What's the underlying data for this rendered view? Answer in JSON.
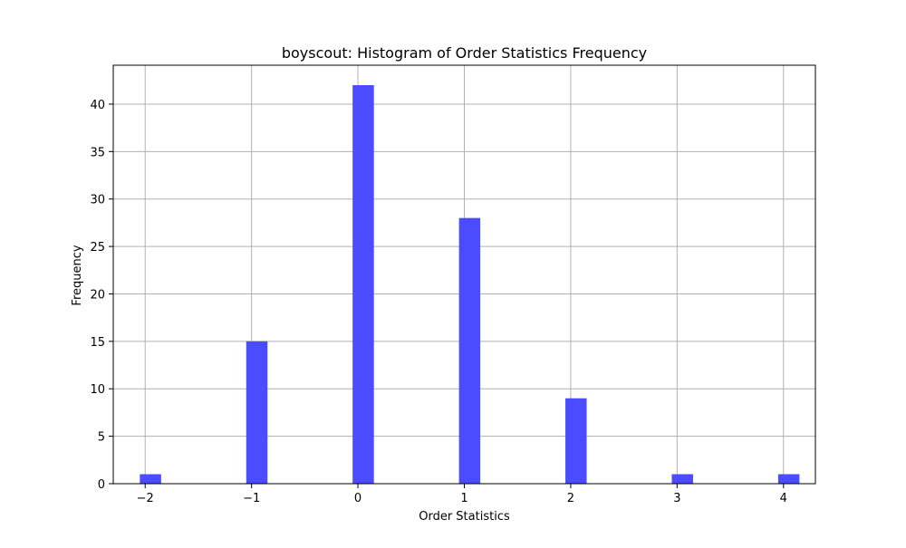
{
  "chart_data": {
    "type": "bar",
    "title": "boyscout: Histogram of Order Statistics Frequency",
    "xlabel": "Order Statistics",
    "ylabel": "Frequency",
    "bins": [
      {
        "x": -2,
        "value": 1
      },
      {
        "x": -1,
        "value": 15
      },
      {
        "x": 0,
        "value": 42
      },
      {
        "x": 1,
        "value": 28
      },
      {
        "x": 2,
        "value": 9
      },
      {
        "x": 3,
        "value": 1
      },
      {
        "x": 4,
        "value": 1
      }
    ],
    "bin_width": 0.2,
    "xlim": [
      -2.3,
      4.3
    ],
    "ylim": [
      0,
      44.1
    ],
    "xticks": [
      -2,
      -1,
      0,
      1,
      2,
      3,
      4
    ],
    "xtick_labels": [
      "−2",
      "−1",
      "0",
      "1",
      "2",
      "3",
      "4"
    ],
    "yticks": [
      0,
      5,
      10,
      15,
      20,
      25,
      30,
      35,
      40
    ],
    "ytick_labels": [
      "0",
      "5",
      "10",
      "15",
      "20",
      "25",
      "30",
      "35",
      "40"
    ],
    "grid": true,
    "colors": {
      "bar": "#4b4bff",
      "grid": "#b0b0b0",
      "axes": "#000000"
    }
  }
}
